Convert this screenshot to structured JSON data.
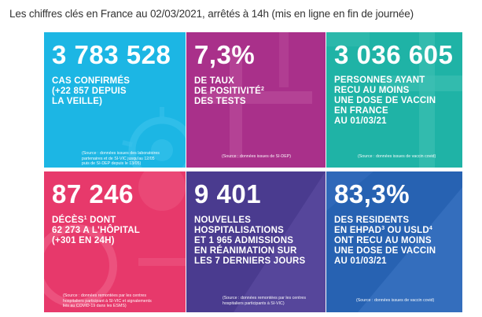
{
  "headline": "Les chiffres clés en France au 02/03/2021, arrêtés à 14h (mis en ligne en fin de journée)",
  "tiles": {
    "cases": {
      "value": "3 783 528",
      "lines": [
        "CAS CONFIRMÉS",
        "(+22 857 DEPUIS",
        "LA VEILLE)"
      ],
      "source": [
        "(Source : données issues des laboratoires",
        "partenaires et de SI-VIC jusqu'au 12/05",
        "puis de SI-DEP depuis le 13/05)"
      ],
      "color": "#1cb6e4"
    },
    "positivity": {
      "value": "7,3%",
      "line1": "DE TAUX",
      "line2a": "DE POSITIVITÉ",
      "line2sup": "2",
      "line3": "DES TESTS",
      "source": "(Source : données issues de SI-DEP)",
      "color": "#a9308a"
    },
    "vaccinated": {
      "value": "3 036 605",
      "lines": [
        "PERSONNES AYANT",
        "RECU AU MOINS",
        "UNE DOSE DE VACCIN",
        "EN FRANCE",
        "AU 01/03/21"
      ],
      "source": "(Source : données issues de vaccin covid)",
      "color": "#1fb3a6"
    },
    "deaths": {
      "value": "87 246",
      "line1a": "DÉCÈS",
      "line1sup": "1",
      "line1b": " DONT",
      "line2": "62 273 A L'HÔPITAL",
      "line3": "(+301 EN 24H)",
      "source": [
        "(Source : données remontées par les centres",
        "hospitaliers participant à SI-VIC et signalements",
        "liés au COVID-19 dans les ESMS)"
      ],
      "color": "#e7396b"
    },
    "hospital": {
      "value": "9 401",
      "lines": [
        "NOUVELLES",
        "HOSPITALISATIONS",
        "ET 1 965 ADMISSIONS",
        "EN RÉANIMATION SUR",
        "LES 7 DERNIERS JOURS"
      ],
      "source": [
        "(Source : données remontées par les centres",
        "hospitaliers participants à SI-VIC)"
      ],
      "color": "#4a3b8f"
    },
    "residents": {
      "value": "83,3%",
      "line1": "DES RESIDENTS",
      "line2a": "EN EHPAD",
      "line2sup1": "3",
      "line2b": " OU USLD",
      "line2sup2": "4",
      "line3": "ONT RECU AU MOINS",
      "line4": "UNE DOSE DE VACCIN",
      "line5": "AU 01/03/21",
      "source": "(Source : données issues de vaccin covid)",
      "color": "#2762b2"
    }
  }
}
